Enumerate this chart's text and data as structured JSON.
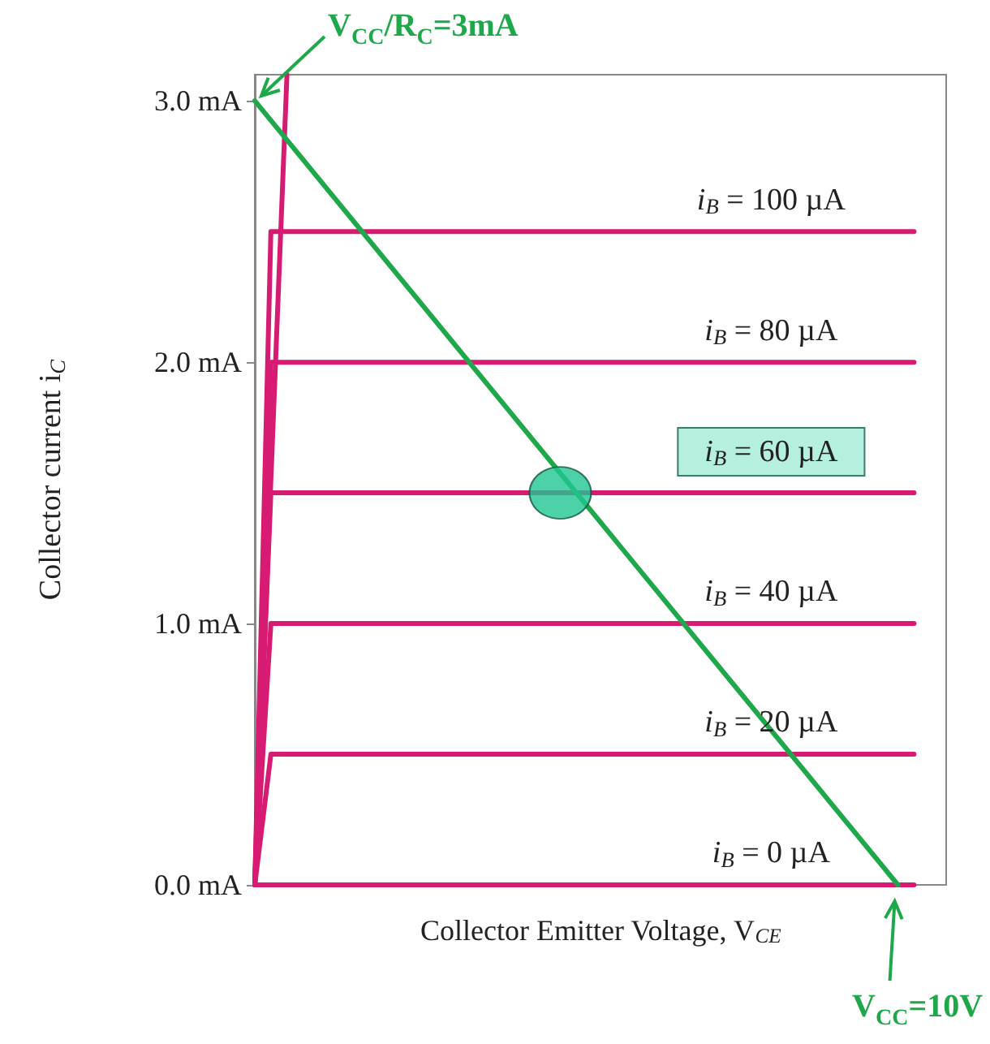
{
  "chart_data": {
    "type": "line",
    "ylabel": "Collector current i$_{C}$",
    "xlabel": "Collector Emitter Voltage, V$_{CE}$",
    "categories": [
      null,
      null,
      null,
      null,
      null,
      null,
      null,
      null,
      null,
      null,
      null,
      null,
      null,
      null,
      null,
      null,
      null,
      null,
      null,
      null,
      null,
      null,
      null,
      null,
      null,
      null,
      null,
      null,
      null,
      null,
      null,
      null,
      null,
      null,
      null,
      null,
      null,
      null,
      null,
      null,
      null,
      null,
      null,
      null
    ],
    "ylim": [
      0,
      3.1
    ],
    "yticks": [
      {
        "value": 0,
        "label": "0.0 mA"
      },
      {
        "value": 1,
        "label": "1.0 mA"
      },
      {
        "value": 2,
        "label": "2.0 mA"
      },
      {
        "value": 3,
        "label": "3.0 mA"
      }
    ],
    "tick_labels": "y",
    "grid": false,
    "legend": false,
    "marker": "none",
    "line_style": "solid",
    "series": [
      {
        "color": "#d81b72",
        "values": [
          0,
          null,
          3.1,
          null,
          null,
          null,
          null,
          null,
          null,
          null,
          null,
          null,
          null,
          null,
          null,
          null,
          null,
          null,
          null,
          null,
          null,
          null,
          null,
          null,
          null,
          null,
          null,
          null,
          null,
          null,
          null,
          null,
          null,
          null,
          null,
          null,
          null,
          null,
          null,
          null,
          null,
          null,
          null,
          null
        ]
      },
      {
        "name": "i$_{B}$ = 100 µA",
        "color": "#d81b72",
        "values": [
          0,
          2.5,
          2.5,
          2.5,
          2.5,
          2.5,
          2.5,
          2.5,
          2.5,
          2.5,
          2.5,
          2.5,
          2.5,
          2.5,
          2.5,
          2.5,
          2.5,
          2.5,
          2.5,
          2.5,
          2.5,
          2.5,
          2.5,
          2.5,
          2.5,
          2.5,
          2.5,
          2.5,
          2.5,
          2.5,
          2.5,
          2.5,
          2.5,
          2.5,
          2.5,
          2.5,
          2.5,
          2.5,
          2.5,
          2.5,
          2.5,
          2.5,
          null,
          null
        ]
      },
      {
        "name": "i$_{B}$ = 80 µA",
        "color": "#d81b72",
        "values": [
          0,
          2.0,
          2.0,
          2.0,
          2.0,
          2.0,
          2.0,
          2.0,
          2.0,
          2.0,
          2.0,
          2.0,
          2.0,
          2.0,
          2.0,
          2.0,
          2.0,
          2.0,
          2.0,
          2.0,
          2.0,
          2.0,
          2.0,
          2.0,
          2.0,
          2.0,
          2.0,
          2.0,
          2.0,
          2.0,
          2.0,
          2.0,
          2.0,
          2.0,
          2.0,
          2.0,
          2.0,
          2.0,
          2.0,
          2.0,
          2.0,
          2.0,
          null,
          null
        ]
      },
      {
        "name": "i$_{B}$ = 60 µA",
        "color": "#d81b72",
        "values": [
          0,
          1.5,
          1.5,
          1.5,
          1.5,
          1.5,
          1.5,
          1.5,
          1.5,
          1.5,
          1.5,
          1.5,
          1.5,
          1.5,
          1.5,
          1.5,
          1.5,
          1.5,
          null,
          null,
          null,
          1.5,
          1.5,
          1.5,
          1.5,
          1.5,
          1.5,
          1.5,
          1.5,
          1.5,
          1.5,
          1.5,
          1.5,
          1.5,
          1.5,
          1.5,
          1.5,
          1.5,
          1.5,
          1.5,
          1.5,
          1.5,
          null,
          null
        ]
      },
      {
        "name": "i$_{B}$ = 40 µA",
        "color": "#d81b72",
        "values": [
          0,
          1.0,
          1.0,
          1.0,
          1.0,
          1.0,
          1.0,
          1.0,
          1.0,
          1.0,
          1.0,
          1.0,
          1.0,
          1.0,
          1.0,
          1.0,
          1.0,
          1.0,
          1.0,
          1.0,
          1.0,
          1.0,
          1.0,
          1.0,
          1.0,
          1.0,
          1.0,
          1.0,
          1.0,
          1.0,
          1.0,
          1.0,
          1.0,
          1.0,
          1.0,
          1.0,
          1.0,
          1.0,
          1.0,
          1.0,
          1.0,
          1.0,
          null,
          null
        ]
      },
      {
        "name": "i$_{B}$ = 20 µA",
        "color": "#d81b72",
        "values": [
          0,
          0.5,
          0.5,
          0.5,
          0.5,
          0.5,
          0.5,
          0.5,
          0.5,
          0.5,
          0.5,
          0.5,
          0.5,
          0.5,
          0.5,
          0.5,
          0.5,
          0.5,
          0.5,
          0.5,
          0.5,
          0.5,
          0.5,
          0.5,
          0.5,
          0.5,
          0.5,
          0.5,
          0.5,
          0.5,
          0.5,
          0.5,
          0.5,
          0.5,
          0.5,
          0.5,
          0.5,
          0.5,
          0.5,
          0.5,
          0.5,
          0.5,
          null,
          null
        ]
      },
      {
        "name": "i$_{B}$ = 0 µA",
        "color": "#d81b72",
        "values": [
          0,
          0,
          0,
          0,
          0,
          0,
          0,
          0,
          0,
          0,
          0,
          0,
          0,
          0,
          0,
          0,
          0,
          0,
          0,
          0,
          0,
          0,
          0,
          0,
          0,
          0,
          0,
          0,
          0,
          0,
          0,
          0,
          0,
          0,
          0,
          0,
          0,
          0,
          0,
          0,
          0,
          0,
          null,
          null
        ]
      },
      {
        "color": "#1ea84b",
        "values": [
          3,
          null,
          null,
          null,
          null,
          null,
          null,
          null,
          null,
          null,
          null,
          null,
          null,
          null,
          null,
          null,
          null,
          null,
          null,
          null,
          null,
          null,
          null,
          null,
          null,
          null,
          null,
          null,
          null,
          null,
          null,
          null,
          null,
          null,
          null,
          null,
          null,
          null,
          null,
          null,
          0,
          null,
          null,
          null
        ]
      },
      {
        "type": "scatter",
        "marker": "circle",
        "color": "#1fc592",
        "values": [
          null,
          null,
          null,
          null,
          null,
          null,
          null,
          null,
          null,
          null,
          null,
          null,
          null,
          null,
          null,
          null,
          null,
          null,
          null,
          1.5,
          null,
          null,
          null,
          null,
          null,
          null,
          null,
          null,
          null,
          null,
          null,
          null,
          null,
          null,
          null,
          null,
          null,
          null,
          null,
          null,
          null,
          null,
          null,
          null
        ]
      }
    ],
    "annotations": [
      "V$_{CC}$/R$_{C}$=3mA",
      "V$_{CC}$=10V"
    ]
  }
}
